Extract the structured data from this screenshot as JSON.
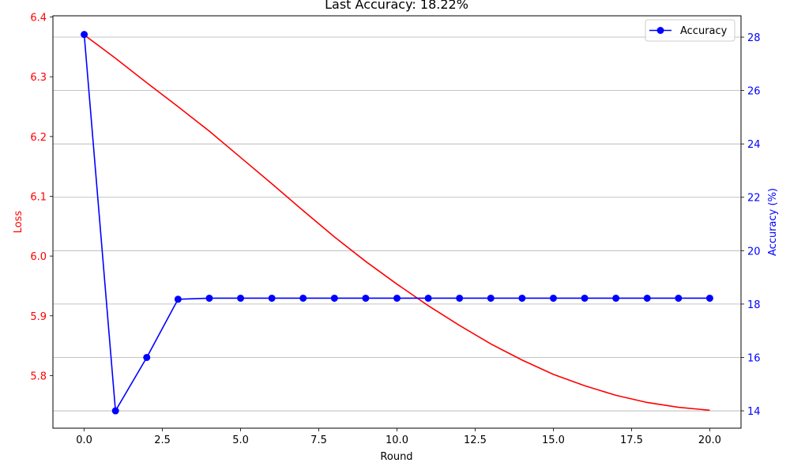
{
  "chart_data": {
    "type": "line",
    "title": "Last Accuracy: 18.22%",
    "xlabel": "Round",
    "ylabel_left": "Loss",
    "ylabel_right": "Accuracy (%)",
    "x": [
      0,
      1,
      2,
      3,
      4,
      5,
      6,
      7,
      8,
      9,
      10,
      11,
      12,
      13,
      14,
      15,
      16,
      17,
      18,
      19,
      20
    ],
    "xlim": [
      -1,
      21
    ],
    "ylim_left": [
      5.712,
      6.402
    ],
    "ylim_right": [
      13.35,
      28.8
    ],
    "xticks": [
      0.0,
      2.5,
      5.0,
      7.5,
      10.0,
      12.5,
      15.0,
      17.5,
      20.0
    ],
    "xtick_labels": [
      "0.0",
      "2.5",
      "5.0",
      "7.5",
      "10.0",
      "12.5",
      "15.0",
      "17.5",
      "20.0"
    ],
    "yticks_left": [
      5.8,
      5.9,
      6.0,
      6.1,
      6.2,
      6.3,
      6.4
    ],
    "ytick_labels_left": [
      "5.8",
      "5.9",
      "6.0",
      "6.1",
      "6.2",
      "6.3",
      "6.4"
    ],
    "yticks_right": [
      14,
      16,
      18,
      20,
      22,
      24,
      26,
      28
    ],
    "ytick_labels_right": [
      "14",
      "16",
      "18",
      "20",
      "22",
      "24",
      "26",
      "28"
    ],
    "grid": "horizontal-right-axis",
    "legend_position": "top-right",
    "series": [
      {
        "name": "",
        "axis": "left",
        "color": "#ff0000",
        "markers": false,
        "values": [
          6.37,
          6.331,
          6.29,
          6.25,
          6.209,
          6.165,
          6.121,
          6.076,
          6.032,
          5.991,
          5.953,
          5.917,
          5.884,
          5.853,
          5.826,
          5.802,
          5.783,
          5.767,
          5.755,
          5.747,
          5.742
        ]
      },
      {
        "name": "Accuracy",
        "axis": "right",
        "color": "#0000ff",
        "markers": true,
        "values": [
          28.1,
          14.0,
          16.0,
          18.18,
          18.22,
          18.22,
          18.22,
          18.22,
          18.22,
          18.22,
          18.22,
          18.22,
          18.22,
          18.22,
          18.22,
          18.22,
          18.22,
          18.22,
          18.22,
          18.22,
          18.22
        ]
      }
    ]
  },
  "colors": {
    "loss": "#ff0000",
    "accuracy": "#0000ff",
    "grid": "#b0b0b0",
    "axis": "#000000"
  }
}
